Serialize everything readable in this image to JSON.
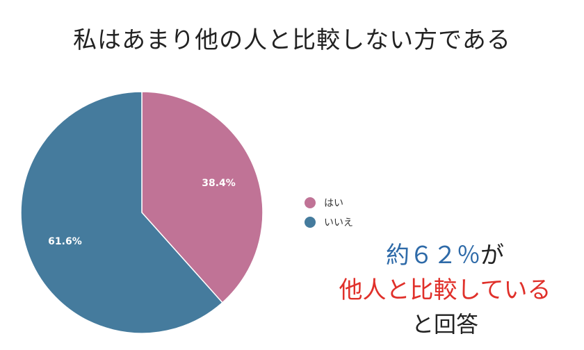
{
  "chart_data": {
    "type": "pie",
    "title": "私はあまり他の人と比較しない方である",
    "slices": [
      {
        "label": "はい",
        "value": 38.4,
        "value_label": "38.4%",
        "color": "#c07396"
      },
      {
        "label": "いいえ",
        "value": 61.6,
        "value_label": "61.6%",
        "color": "#457b9d"
      }
    ],
    "legend_position": "right"
  },
  "annotation": {
    "line1_highlight": "約６２％",
    "line1_rest": "が",
    "line2": "他人と比較している",
    "line3": "と回答"
  }
}
